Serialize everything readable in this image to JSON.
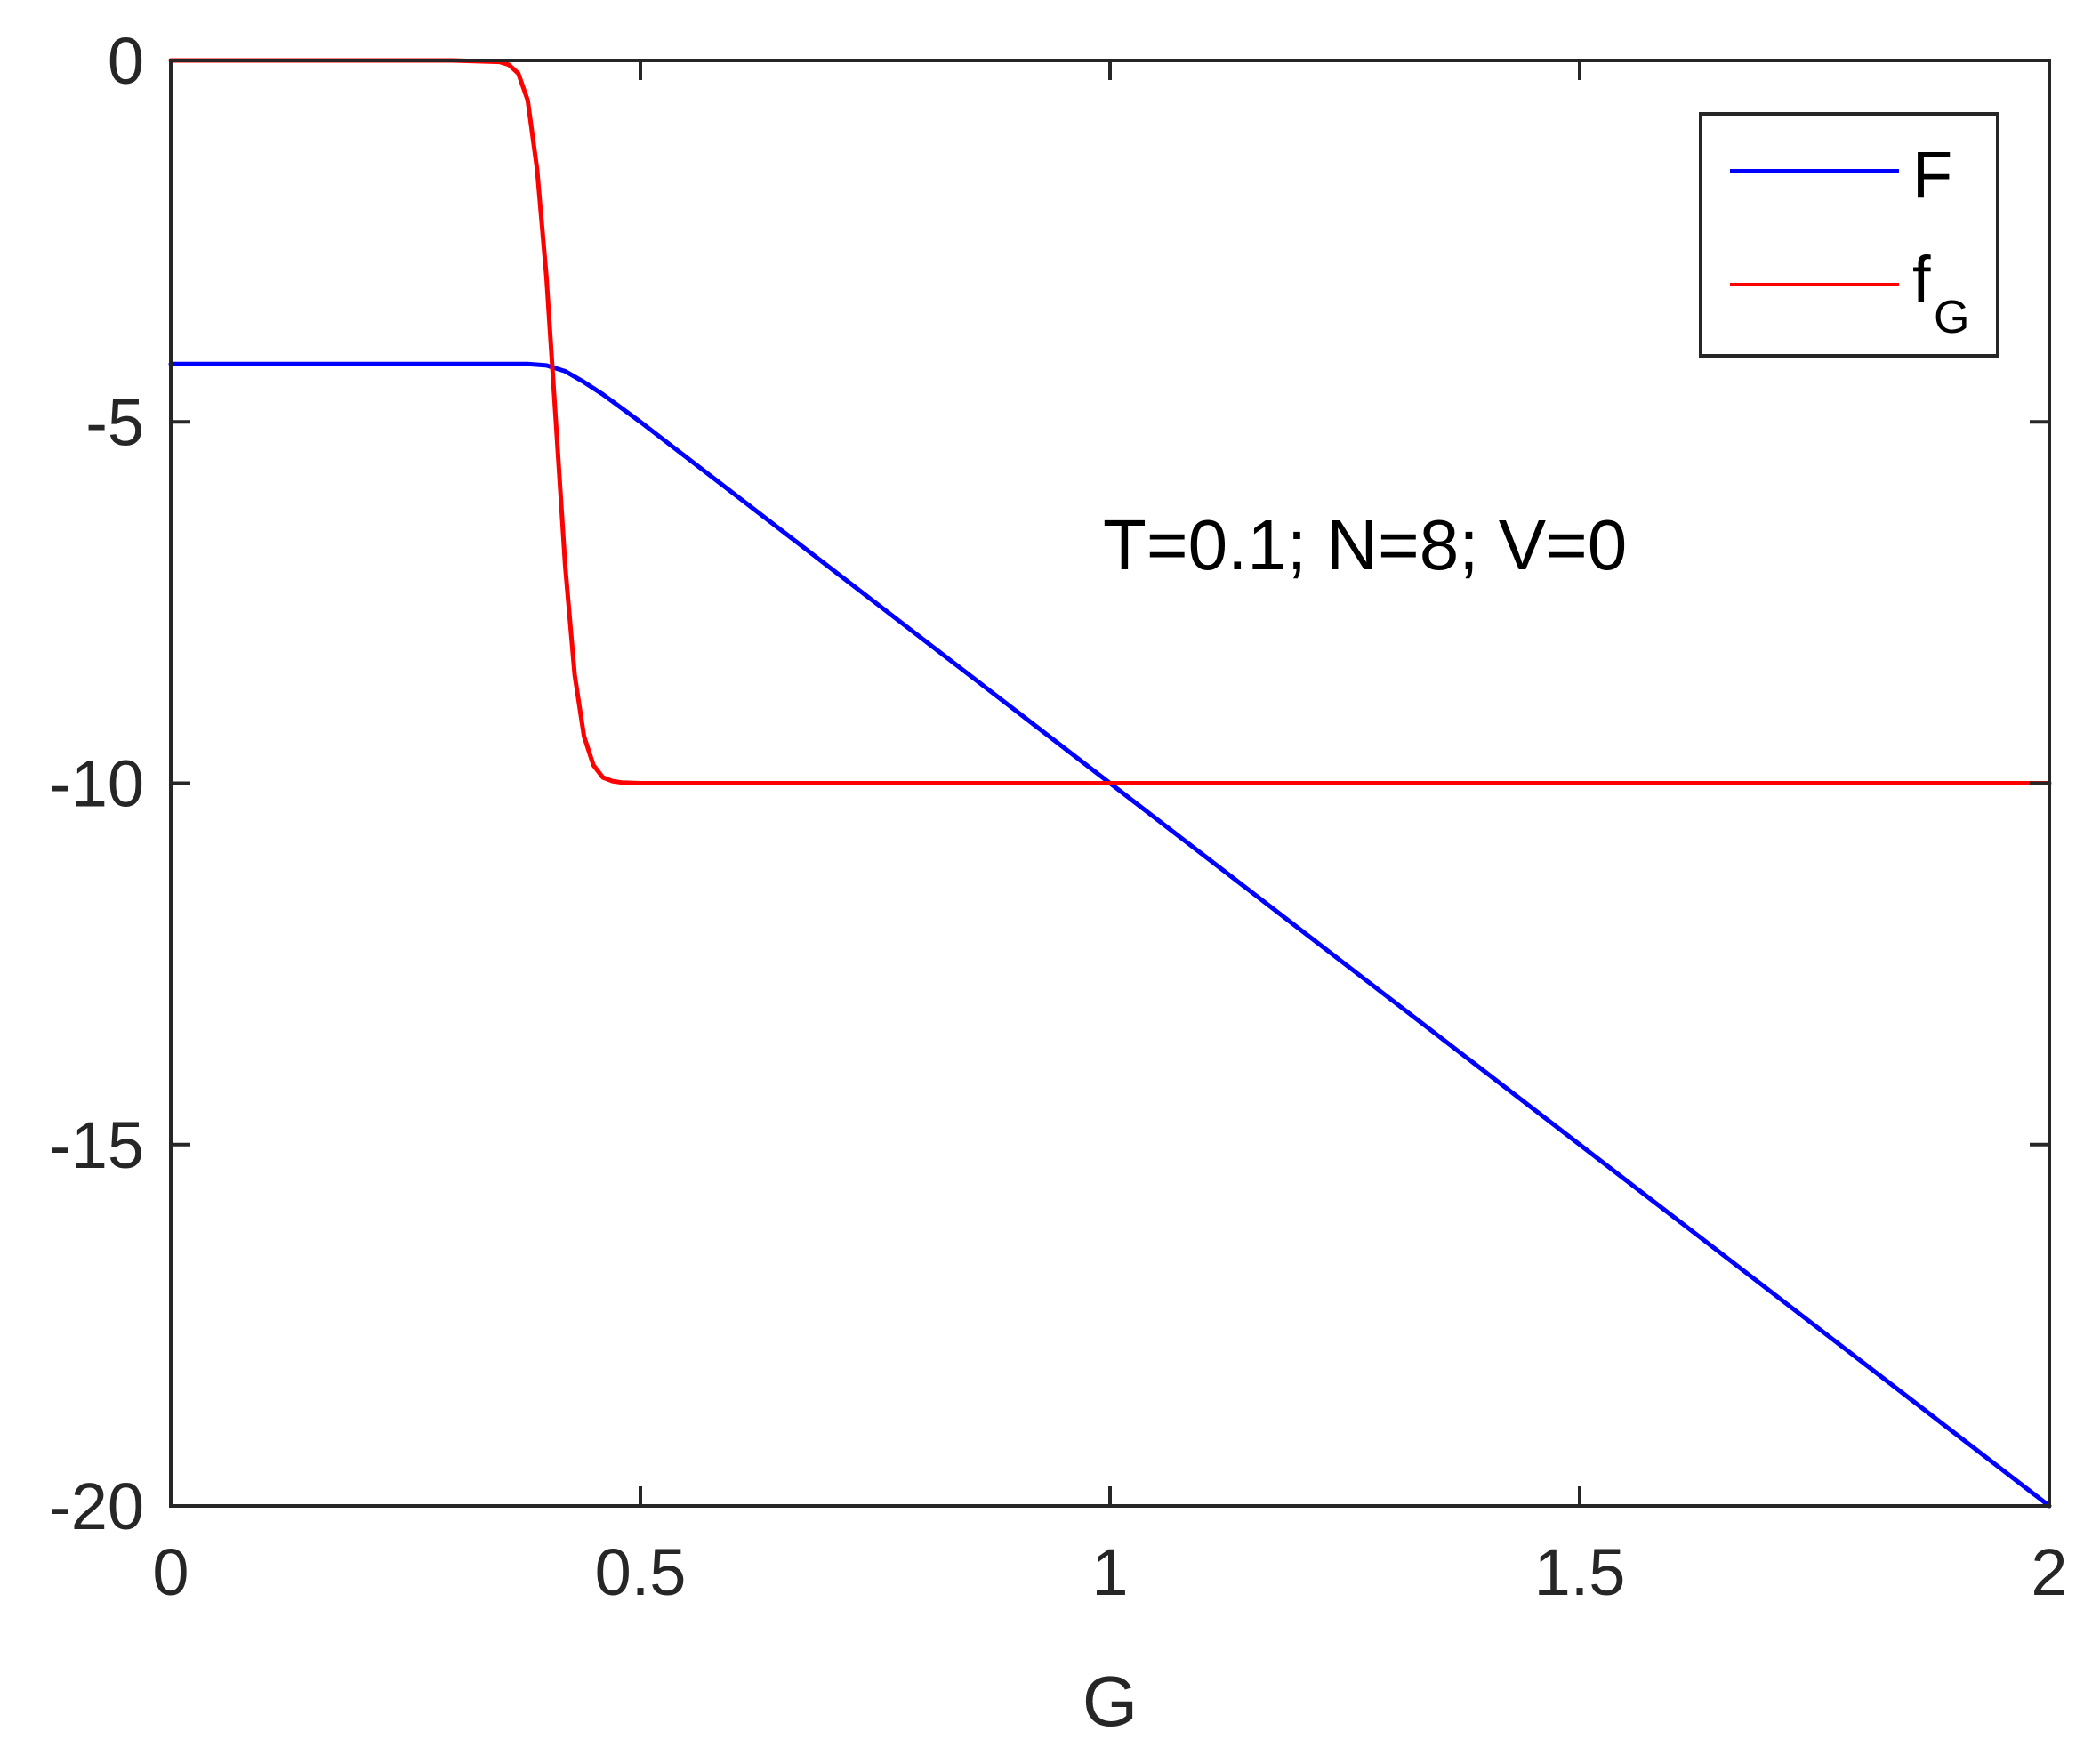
{
  "chart_data": {
    "type": "line",
    "title": "",
    "xlabel": "G",
    "ylabel": "",
    "xlim": [
      0,
      2
    ],
    "ylim": [
      -20,
      0
    ],
    "xticks": [
      0,
      0.5,
      1,
      1.5,
      2
    ],
    "xtick_labels": [
      "0",
      "0.5",
      "1",
      "1.5",
      "2"
    ],
    "yticks": [
      0,
      -5,
      -10,
      -15,
      -20
    ],
    "ytick_labels": [
      "0",
      "-5",
      "-10",
      "-15",
      "-20"
    ],
    "grid": false,
    "legend_position": "top-right",
    "annotation": "T=0.1; N=8; V=0",
    "series": [
      {
        "name": "F",
        "color": "#0000ff",
        "x": [
          0,
          0.1,
          0.2,
          0.3,
          0.38,
          0.4,
          0.42,
          0.44,
          0.46,
          0.5,
          0.6,
          0.8,
          1.0,
          1.2,
          1.4,
          1.6,
          1.8,
          2.0
        ],
        "y": [
          -4.2,
          -4.2,
          -4.2,
          -4.2,
          -4.2,
          -4.22,
          -4.3,
          -4.45,
          -4.62,
          -5.0,
          -6.0,
          -8.0,
          -10.0,
          -12.0,
          -14.0,
          -16.0,
          -18.0,
          -20.0
        ]
      },
      {
        "name": "f",
        "name_subscript": "G",
        "color": "#ff0000",
        "x": [
          0,
          0.1,
          0.2,
          0.3,
          0.35,
          0.36,
          0.37,
          0.38,
          0.39,
          0.4,
          0.41,
          0.42,
          0.43,
          0.44,
          0.45,
          0.46,
          0.47,
          0.48,
          0.5,
          0.6,
          1.0,
          1.5,
          2.0
        ],
        "y": [
          0,
          0,
          0,
          0,
          -0.02,
          -0.06,
          -0.18,
          -0.55,
          -1.5,
          -3.0,
          -5.0,
          -7.0,
          -8.5,
          -9.35,
          -9.75,
          -9.92,
          -9.97,
          -9.99,
          -10,
          -10,
          -10,
          -10,
          -10
        ]
      }
    ]
  }
}
